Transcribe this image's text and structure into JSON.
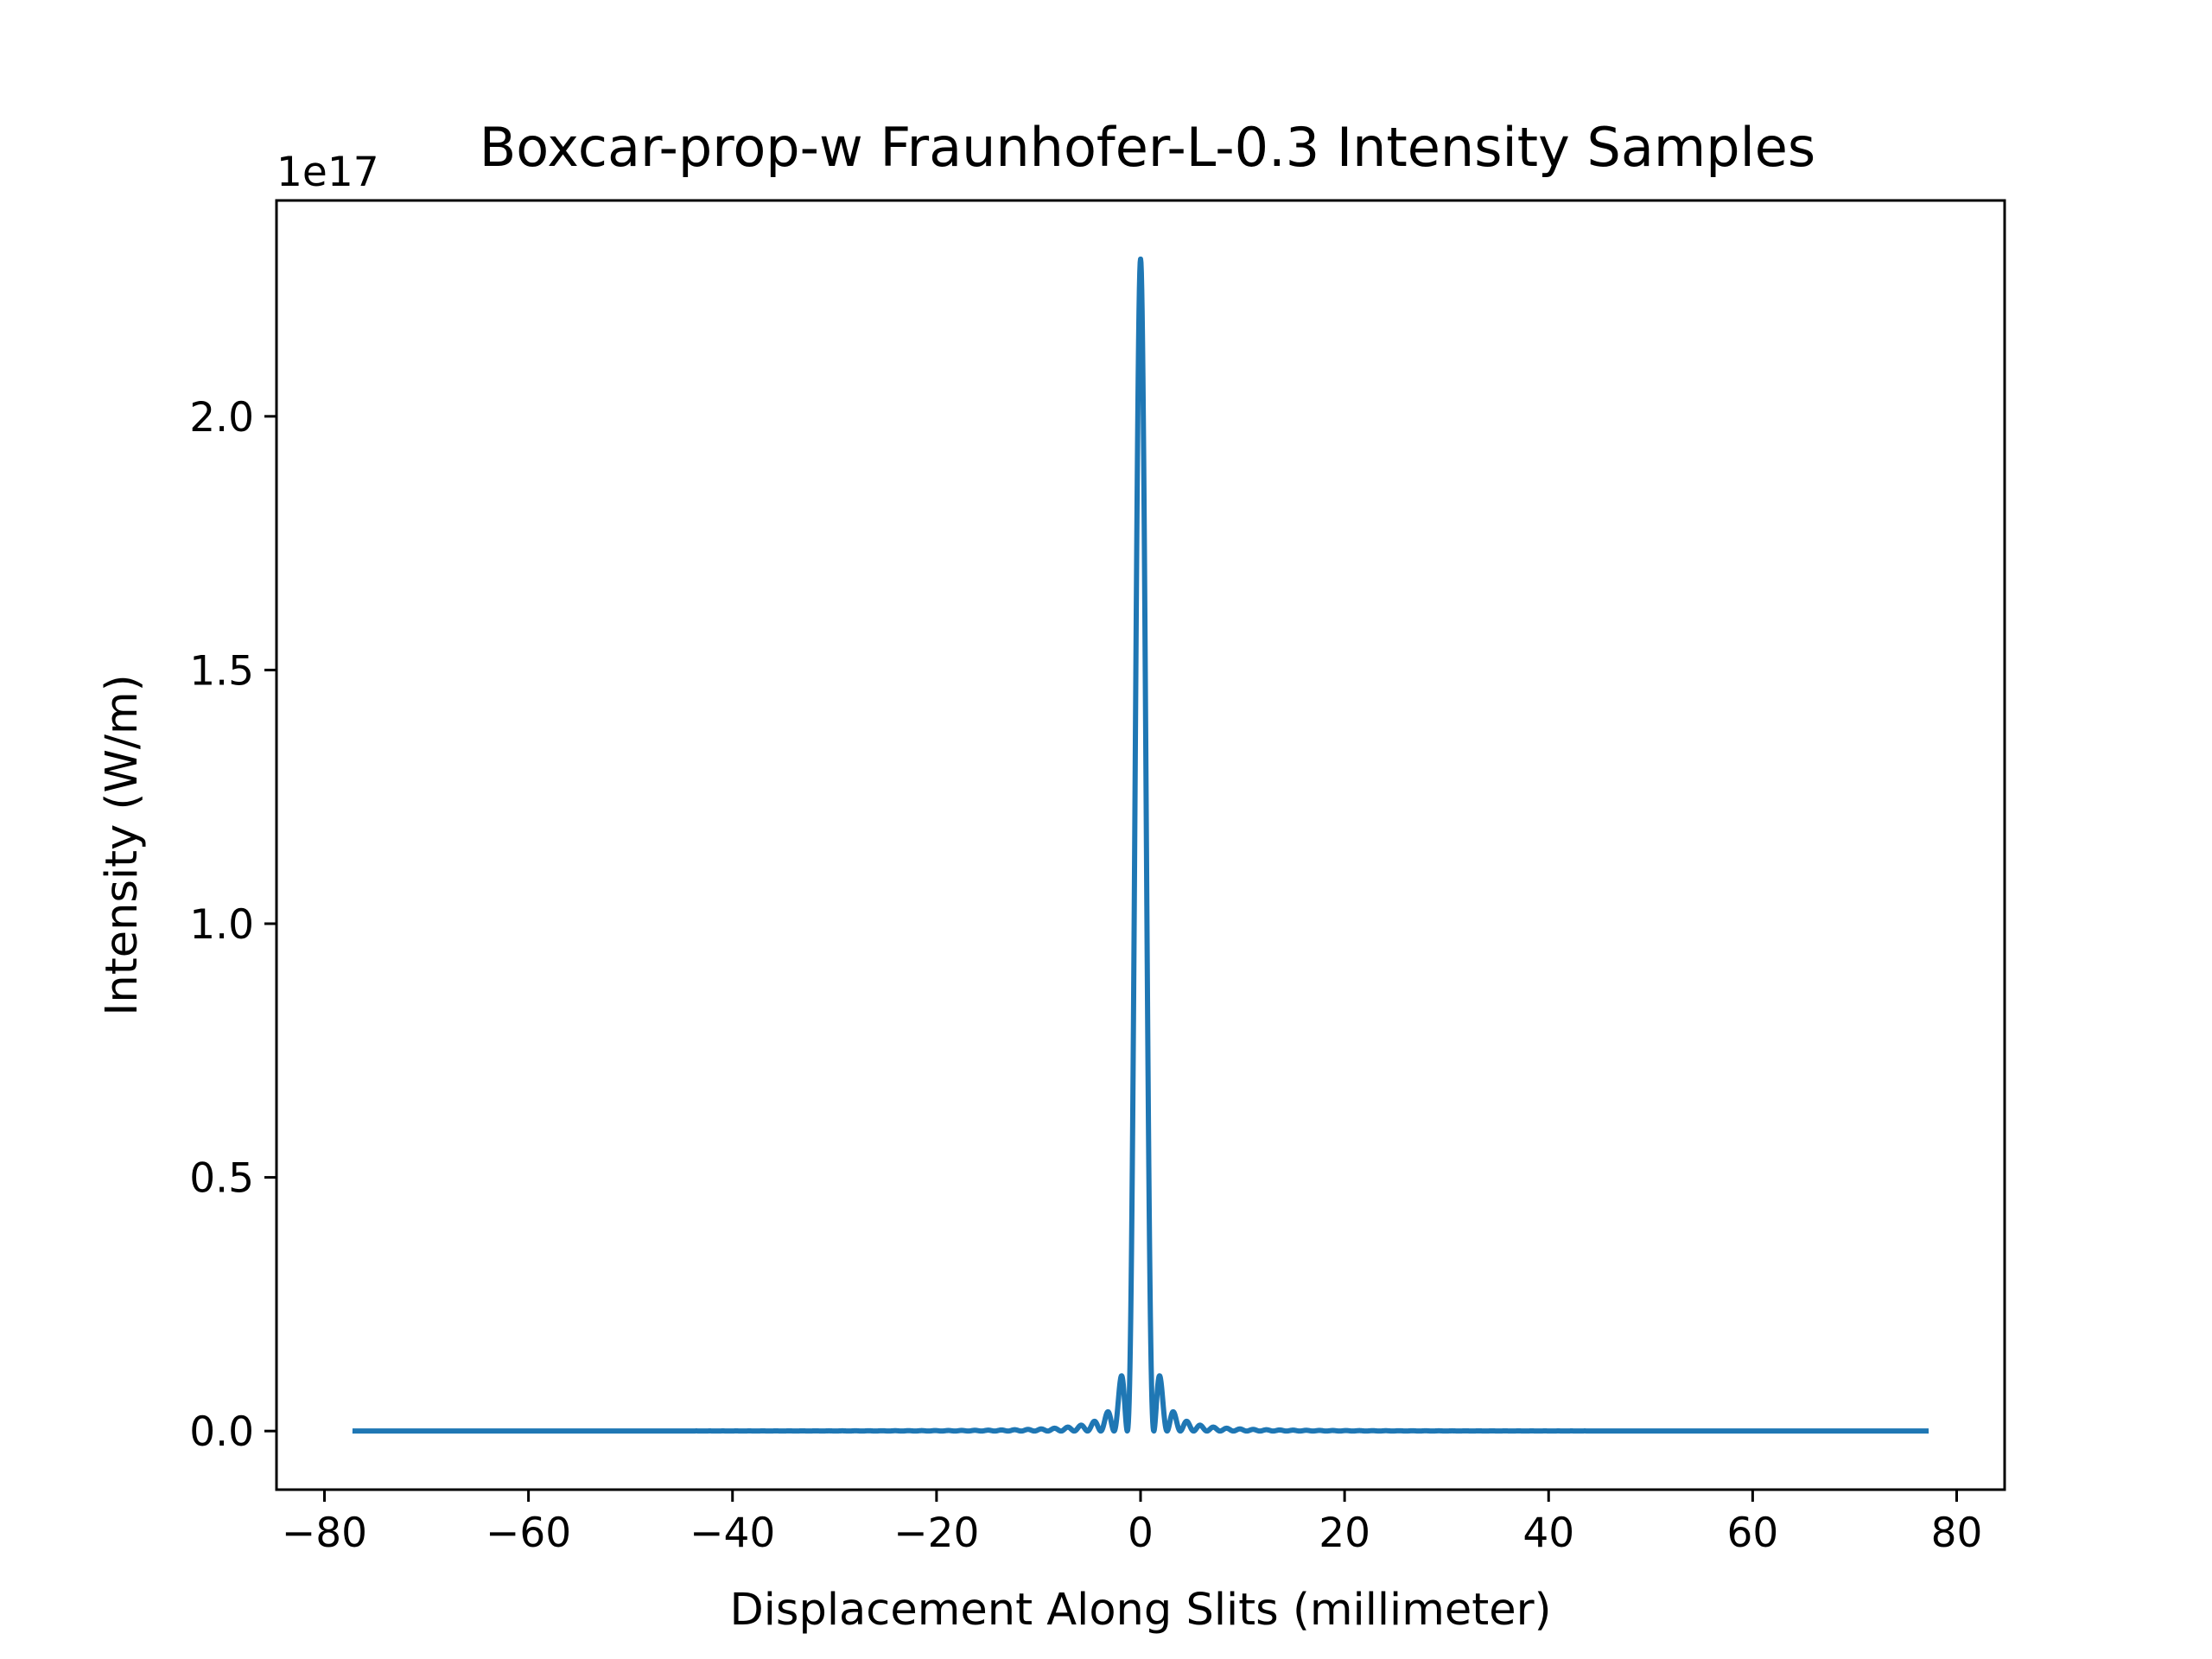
{
  "chart_data": {
    "type": "line",
    "title": "Boxcar-prop-w Fraunhofer-L-0.3 Intensity Samples",
    "xlabel": "Displacement Along Slits (millimeter)",
    "ylabel": "Intensity (W/m)",
    "y_offset_text": "1e17",
    "y_scale": 1e+17,
    "xlim": [
      -84.7,
      84.7
    ],
    "ylim": [
      -0.1155,
      2.4255
    ],
    "x_ticks": [
      -80,
      -60,
      -40,
      -20,
      0,
      20,
      40,
      60,
      80
    ],
    "x_tick_labels": [
      "−80",
      "−60",
      "−40",
      "−20",
      "0",
      "20",
      "40",
      "60",
      "80"
    ],
    "y_ticks": [
      0.0,
      0.5,
      1.0,
      1.5,
      2.0
    ],
    "y_tick_labels": [
      "0.0",
      "0.5",
      "1.0",
      "1.5",
      "2.0"
    ],
    "grid": false,
    "legend": null,
    "series": [
      {
        "model": "sinc2",
        "peak": 2.31,
        "center": 0,
        "first_zero": 1.3,
        "x_range": [
          -77,
          77
        ],
        "color": "#1f77b4"
      }
    ]
  }
}
